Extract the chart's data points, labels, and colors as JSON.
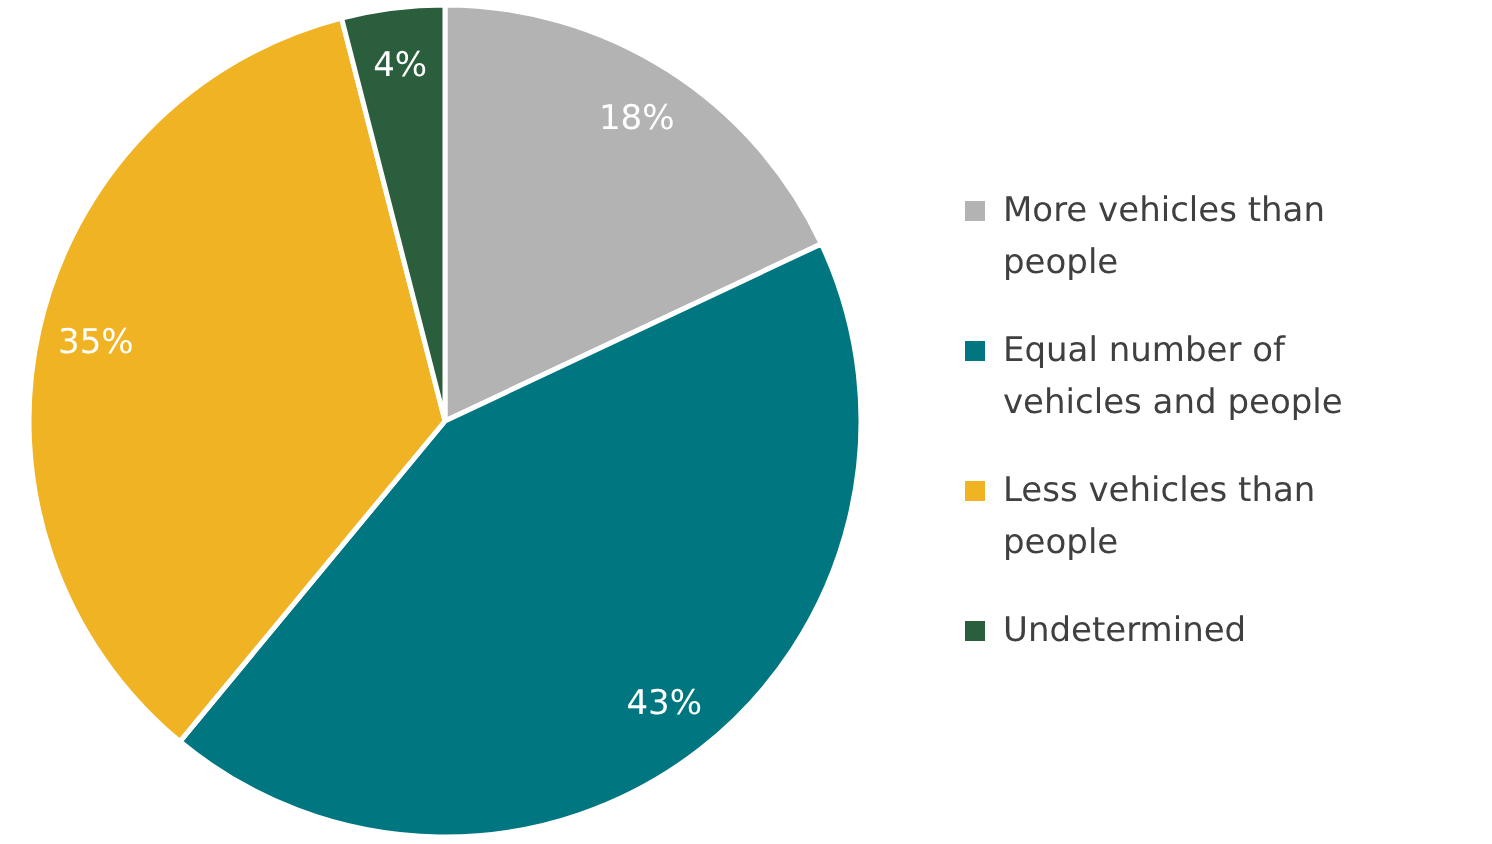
{
  "chart_data": {
    "type": "pie",
    "categories": [
      "More vehicles than people",
      "Equal number of vehicles and people",
      "Less vehicles than people",
      "Undetermined"
    ],
    "values": [
      18,
      43,
      35,
      4
    ],
    "colors": [
      "#b3b3b3",
      "#007780",
      "#f0b323",
      "#2a5e3c"
    ],
    "value_labels": [
      "18%",
      "43%",
      "35%",
      "4%"
    ],
    "legend": "right"
  }
}
